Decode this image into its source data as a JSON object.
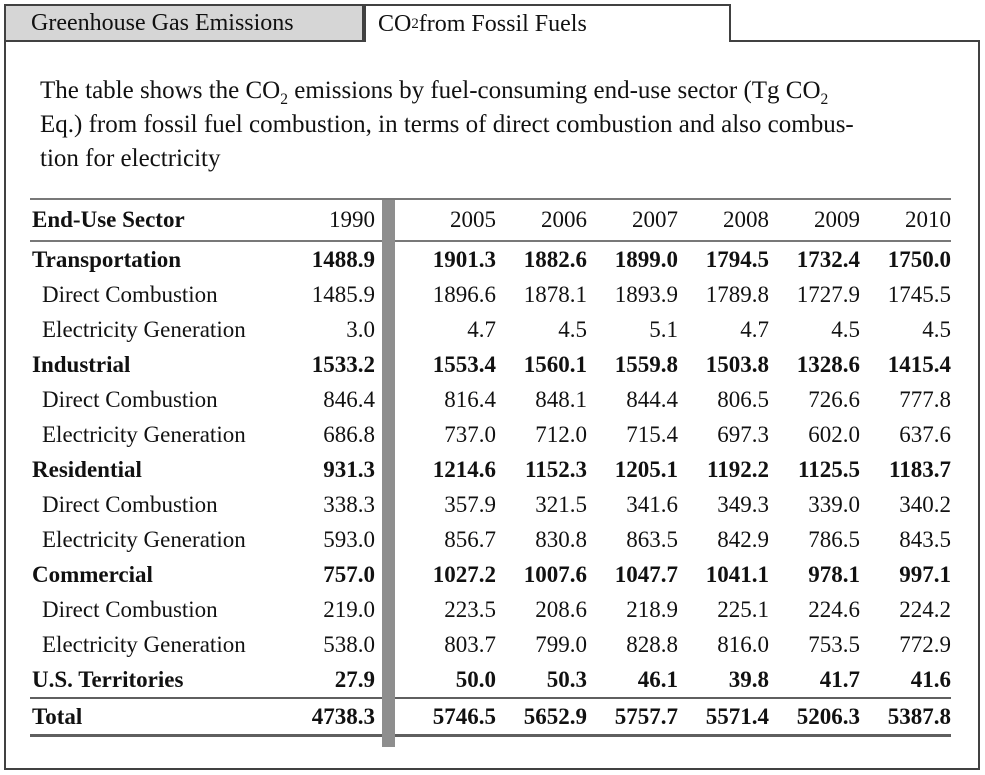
{
  "tabs": [
    {
      "name": "greenhouse-gas-emissions",
      "active": false,
      "label_parts": [
        {
          "t": "Greenhouse Gas Emissions"
        }
      ]
    },
    {
      "name": "co2-from-fossil-fuels",
      "active": true,
      "label_parts": [
        {
          "t": "CO"
        },
        {
          "t": "2",
          "sub": true
        },
        {
          "t": " from Fossil Fuels"
        }
      ]
    }
  ],
  "description": {
    "lines": [
      [
        {
          "t": "The table shows the CO"
        },
        {
          "t": "2",
          "sub": true
        },
        {
          "t": " emissions by fuel-consuming end-use sector (Tg CO"
        },
        {
          "t": "2",
          "sub": true
        }
      ],
      [
        {
          "t": "Eq.) from fossil fuel combustion, in terms of direct combustion and also combus-"
        }
      ],
      [
        {
          "t": "tion for electricity"
        }
      ]
    ]
  },
  "table": {
    "columns": [
      "End-Use Sector",
      "1990",
      "2005",
      "2006",
      "2007",
      "2008",
      "2009",
      "2010"
    ],
    "rows": [
      {
        "label": "Transportation",
        "bold": true,
        "indent": false,
        "total": false,
        "values": [
          "1488.9",
          "1901.3",
          "1882.6",
          "1899.0",
          "1794.5",
          "1732.4",
          "1750.0"
        ]
      },
      {
        "label": "Direct Combustion",
        "bold": false,
        "indent": true,
        "total": false,
        "values": [
          "1485.9",
          "1896.6",
          "1878.1",
          "1893.9",
          "1789.8",
          "1727.9",
          "1745.5"
        ]
      },
      {
        "label": "Electricity Generation",
        "bold": false,
        "indent": true,
        "total": false,
        "values": [
          "3.0",
          "4.7",
          "4.5",
          "5.1",
          "4.7",
          "4.5",
          "4.5"
        ]
      },
      {
        "label": "Industrial",
        "bold": true,
        "indent": false,
        "total": false,
        "values": [
          "1533.2",
          "1553.4",
          "1560.1",
          "1559.8",
          "1503.8",
          "1328.6",
          "1415.4"
        ]
      },
      {
        "label": "Direct Combustion",
        "bold": false,
        "indent": true,
        "total": false,
        "values": [
          "846.4",
          "816.4",
          "848.1",
          "844.4",
          "806.5",
          "726.6",
          "777.8"
        ]
      },
      {
        "label": "Electricity Generation",
        "bold": false,
        "indent": true,
        "total": false,
        "values": [
          "686.8",
          "737.0",
          "712.0",
          "715.4",
          "697.3",
          "602.0",
          "637.6"
        ]
      },
      {
        "label": "Residential",
        "bold": true,
        "indent": false,
        "total": false,
        "values": [
          "931.3",
          "1214.6",
          "1152.3",
          "1205.1",
          "1192.2",
          "1125.5",
          "1183.7"
        ]
      },
      {
        "label": "Direct Combustion",
        "bold": false,
        "indent": true,
        "total": false,
        "values": [
          "338.3",
          "357.9",
          "321.5",
          "341.6",
          "349.3",
          "339.0",
          "340.2"
        ]
      },
      {
        "label": "Electricity Generation",
        "bold": false,
        "indent": true,
        "total": false,
        "values": [
          "593.0",
          "856.7",
          "830.8",
          "863.5",
          "842.9",
          "786.5",
          "843.5"
        ]
      },
      {
        "label": "Commercial",
        "bold": true,
        "indent": false,
        "total": false,
        "values": [
          "757.0",
          "1027.2",
          "1007.6",
          "1047.7",
          "1041.1",
          "978.1",
          "997.1"
        ]
      },
      {
        "label": "Direct Combustion",
        "bold": false,
        "indent": true,
        "total": false,
        "values": [
          "219.0",
          "223.5",
          "208.6",
          "218.9",
          "225.1",
          "224.6",
          "224.2"
        ]
      },
      {
        "label": "Electricity Generation",
        "bold": false,
        "indent": true,
        "total": false,
        "values": [
          "538.0",
          "803.7",
          "799.0",
          "828.8",
          "816.0",
          "753.5",
          "772.9"
        ]
      },
      {
        "label": "U.S. Territories",
        "bold": true,
        "indent": false,
        "total": false,
        "values": [
          "27.9",
          "50.0",
          "50.3",
          "46.1",
          "39.8",
          "41.7",
          "41.6"
        ]
      },
      {
        "label": "Total",
        "bold": true,
        "indent": false,
        "total": true,
        "values": [
          "4738.3",
          "5746.5",
          "5652.9",
          "5757.7",
          "5571.4",
          "5206.3",
          "5387.8"
        ]
      }
    ]
  },
  "colors": {
    "border": "#414141",
    "tab_inactive_bg": "#d6d6d6",
    "rule": "#787878",
    "rule_dark": "#5f5f5f",
    "divider_bar": "#8e8e8e"
  }
}
